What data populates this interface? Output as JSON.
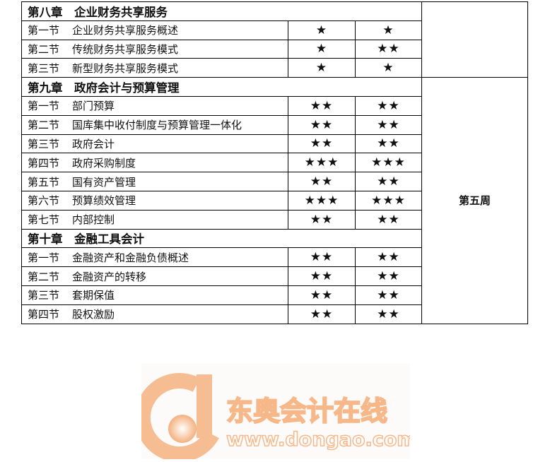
{
  "chapters": [
    {
      "title": "第八章　企业财务共享服务",
      "week": "",
      "sections": [
        {
          "num": "第一节",
          "name": "企业财务共享服务概述",
          "s1": "★",
          "s2": "★"
        },
        {
          "num": "第二节",
          "name": "传统财务共享服务模式",
          "s1": "★",
          "s2": "★★"
        },
        {
          "num": "第三节",
          "name": "新型财务共享服务模式",
          "s1": "★",
          "s2": "★"
        }
      ]
    },
    {
      "title": "第九章　政府会计与预算管理",
      "week": "第五周",
      "sections": [
        {
          "num": "第一节",
          "name": "部门预算",
          "s1": "★★",
          "s2": "★★"
        },
        {
          "num": "第二节",
          "name": "国库集中收付制度与预算管理一体化",
          "s1": "★★",
          "s2": "★★"
        },
        {
          "num": "第三节",
          "name": "政府会计",
          "s1": "★★",
          "s2": "★★"
        },
        {
          "num": "第四节",
          "name": "政府采购制度",
          "s1": "★★★",
          "s2": "★★★"
        },
        {
          "num": "第五节",
          "name": "国有资产管理",
          "s1": "★★",
          "s2": "★★"
        },
        {
          "num": "第六节",
          "name": "预算绩效管理",
          "s1": "★★★",
          "s2": "★★★"
        },
        {
          "num": "第七节",
          "name": "内部控制",
          "s1": "★★",
          "s2": "★★"
        }
      ]
    },
    {
      "title": "第十章　金融工具会计",
      "sections": [
        {
          "num": "第一节",
          "name": "金融资产和金融负债概述",
          "s1": "★★",
          "s2": "★★"
        },
        {
          "num": "第二节",
          "name": "金融资产的转移",
          "s1": "★★",
          "s2": "★★"
        },
        {
          "num": "第三节",
          "name": "套期保值",
          "s1": "★★",
          "s2": "★★"
        },
        {
          "num": "第四节",
          "name": "股权激励",
          "s1": "★★",
          "s2": "★★"
        }
      ]
    }
  ],
  "logo": {
    "cn": "东奥会计在线",
    "url": "www.dongao.com",
    "color": "#f6b889"
  }
}
